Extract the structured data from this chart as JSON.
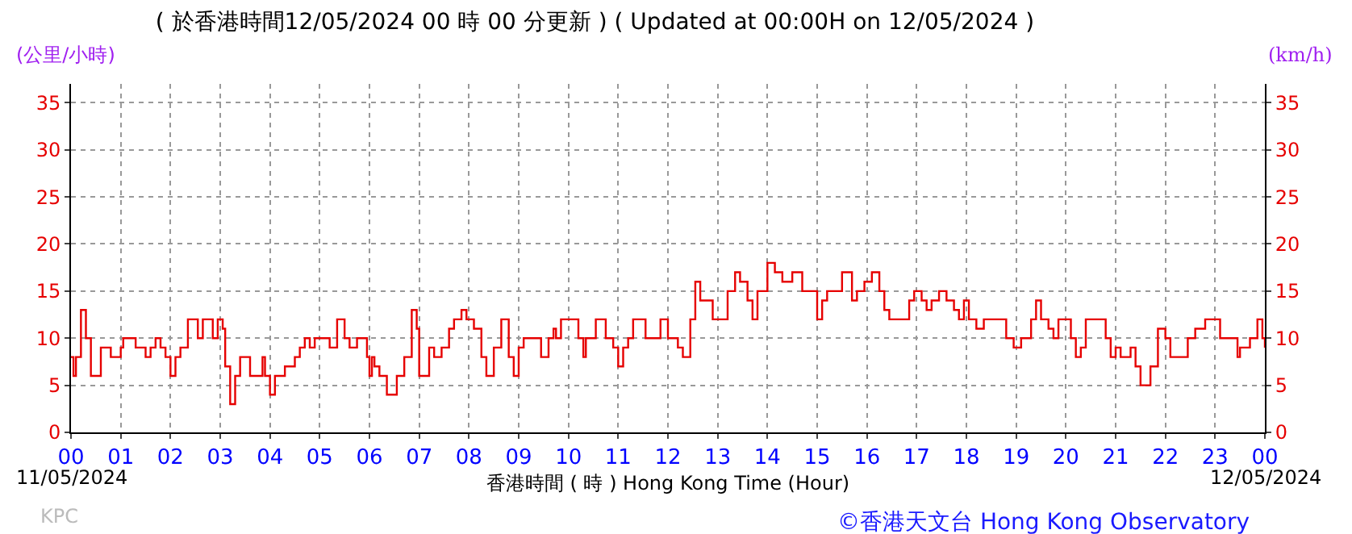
{
  "chart_data": {
    "type": "step",
    "title": "( 於香港時間12/05/2024 00 時 00 分更新 ) ( Updated at 00:00H on 12/05/2024 )",
    "xlabel": "香港時間 ( 時 ) Hong Kong Time (Hour)",
    "ylabel": "(公里/小時)",
    "y2label": "(km/h)",
    "annotations": [
      "11/05/2024",
      "12/05/2024",
      "KPC",
      "©香港天文台 Hong Kong Observatory"
    ],
    "x": [
      0,
      0.05,
      0.1,
      0.2,
      0.3,
      0.4,
      0.55,
      0.6,
      0.75,
      0.8,
      1.0,
      1.05,
      1.25,
      1.3,
      1.5,
      1.6,
      1.7,
      1.8,
      1.9,
      2.0,
      2.1,
      2.2,
      2.35,
      2.5,
      2.55,
      2.65,
      2.85,
      2.95,
      3.05,
      3.1,
      3.2,
      3.3,
      3.4,
      3.55,
      3.6,
      3.8,
      3.85,
      3.9,
      4.0,
      4.1,
      4.3,
      4.5,
      4.6,
      4.7,
      4.8,
      4.9,
      5.1,
      5.2,
      5.35,
      5.5,
      5.6,
      5.75,
      5.85,
      5.95,
      6.0,
      6.05,
      6.1,
      6.2,
      6.35,
      6.5,
      6.55,
      6.7,
      6.85,
      6.95,
      7.0,
      7.1,
      7.2,
      7.3,
      7.45,
      7.6,
      7.7,
      7.85,
      7.95,
      8.1,
      8.25,
      8.35,
      8.5,
      8.65,
      8.8,
      8.9,
      9.0,
      9.1,
      9.3,
      9.45,
      9.6,
      9.7,
      9.75,
      9.85,
      10.05,
      10.2,
      10.3,
      10.35,
      10.55,
      10.7,
      10.75,
      10.9,
      11.0,
      11.1,
      11.2,
      11.3,
      11.45,
      11.55,
      11.85,
      12.0,
      12.2,
      12.3,
      12.45,
      12.55,
      12.65,
      12.9,
      13.1,
      13.2,
      13.35,
      13.45,
      13.6,
      13.7,
      13.8,
      14.0,
      14.15,
      14.3,
      14.5,
      14.7,
      14.9,
      15.0,
      15.1,
      15.2,
      15.4,
      15.5,
      15.7,
      15.8,
      15.95,
      16.1,
      16.25,
      16.35,
      16.45,
      16.75,
      16.85,
      16.95,
      17.1,
      17.2,
      17.3,
      17.45,
      17.6,
      17.75,
      17.85,
      17.95,
      18.05,
      18.2,
      18.35,
      18.7,
      18.8,
      18.95,
      19.1,
      19.3,
      19.4,
      19.5,
      19.65,
      19.75,
      19.85,
      20.1,
      20.2,
      20.3,
      20.4,
      20.7,
      20.8,
      20.9,
      21.0,
      21.1,
      21.3,
      21.4,
      21.5,
      21.7,
      21.85,
      22.0,
      22.1,
      22.45,
      22.6,
      22.8,
      23.1,
      23.45,
      23.5,
      23.7,
      23.85,
      23.95,
      24
    ],
    "series": [
      {
        "color": "#e60000",
        "values": [
          8,
          6,
          8,
          13,
          10,
          6,
          6,
          9,
          9,
          8,
          9,
          10,
          10,
          9,
          8,
          9,
          10,
          9,
          8,
          6,
          8,
          9,
          12,
          12,
          10,
          12,
          10,
          12,
          11,
          7,
          3,
          6,
          8,
          8,
          6,
          6,
          8,
          6,
          4,
          6,
          7,
          8,
          9,
          10,
          9,
          10,
          10,
          9,
          12,
          10,
          9,
          10,
          10,
          8,
          6,
          8,
          7,
          6,
          4,
          4,
          6,
          8,
          13,
          11,
          6,
          6,
          9,
          8,
          9,
          11,
          12,
          13,
          12,
          11,
          8,
          6,
          9,
          12,
          8,
          6,
          9,
          10,
          10,
          8,
          10,
          11,
          10,
          12,
          12,
          10,
          8,
          10,
          12,
          12,
          10,
          9,
          7,
          9,
          10,
          12,
          12,
          10,
          12,
          10,
          9,
          8,
          12,
          16,
          14,
          12,
          12,
          15,
          17,
          16,
          14,
          12,
          15,
          18,
          17,
          16,
          17,
          15,
          15,
          12,
          14,
          15,
          15,
          17,
          14,
          15,
          16,
          17,
          15,
          13,
          12,
          12,
          14,
          15,
          14,
          13,
          14,
          15,
          14,
          13,
          12,
          14,
          12,
          11,
          12,
          12,
          10,
          9,
          10,
          12,
          14,
          12,
          11,
          10,
          12,
          10,
          8,
          9,
          12,
          12,
          10,
          8,
          9,
          8,
          9,
          7,
          5,
          7,
          11,
          10,
          8,
          10,
          11,
          12,
          10,
          8,
          9,
          10,
          12,
          10,
          9
        ]
      }
    ],
    "xlim": [
      0,
      24
    ],
    "xticks": [
      {
        "value": 0,
        "label": "00"
      },
      {
        "value": 1,
        "label": "01"
      },
      {
        "value": 2,
        "label": "02"
      },
      {
        "value": 3,
        "label": "03"
      },
      {
        "value": 4,
        "label": "04"
      },
      {
        "value": 5,
        "label": "05"
      },
      {
        "value": 6,
        "label": "06"
      },
      {
        "value": 7,
        "label": "07"
      },
      {
        "value": 8,
        "label": "08"
      },
      {
        "value": 9,
        "label": "09"
      },
      10,
      11,
      12,
      13,
      14,
      15,
      16,
      17,
      18,
      19,
      20,
      21,
      22,
      23,
      {
        "value": 24,
        "label": "00"
      }
    ],
    "ylim": [
      0,
      37
    ],
    "yticks": [
      0,
      5,
      10,
      15,
      20,
      25,
      30,
      35
    ],
    "y2lim": [
      0,
      37
    ],
    "y2ticks": [
      0,
      5,
      10,
      15,
      20,
      25,
      30,
      35
    ],
    "grid": true,
    "marker": "none",
    "line_style": "solid"
  }
}
